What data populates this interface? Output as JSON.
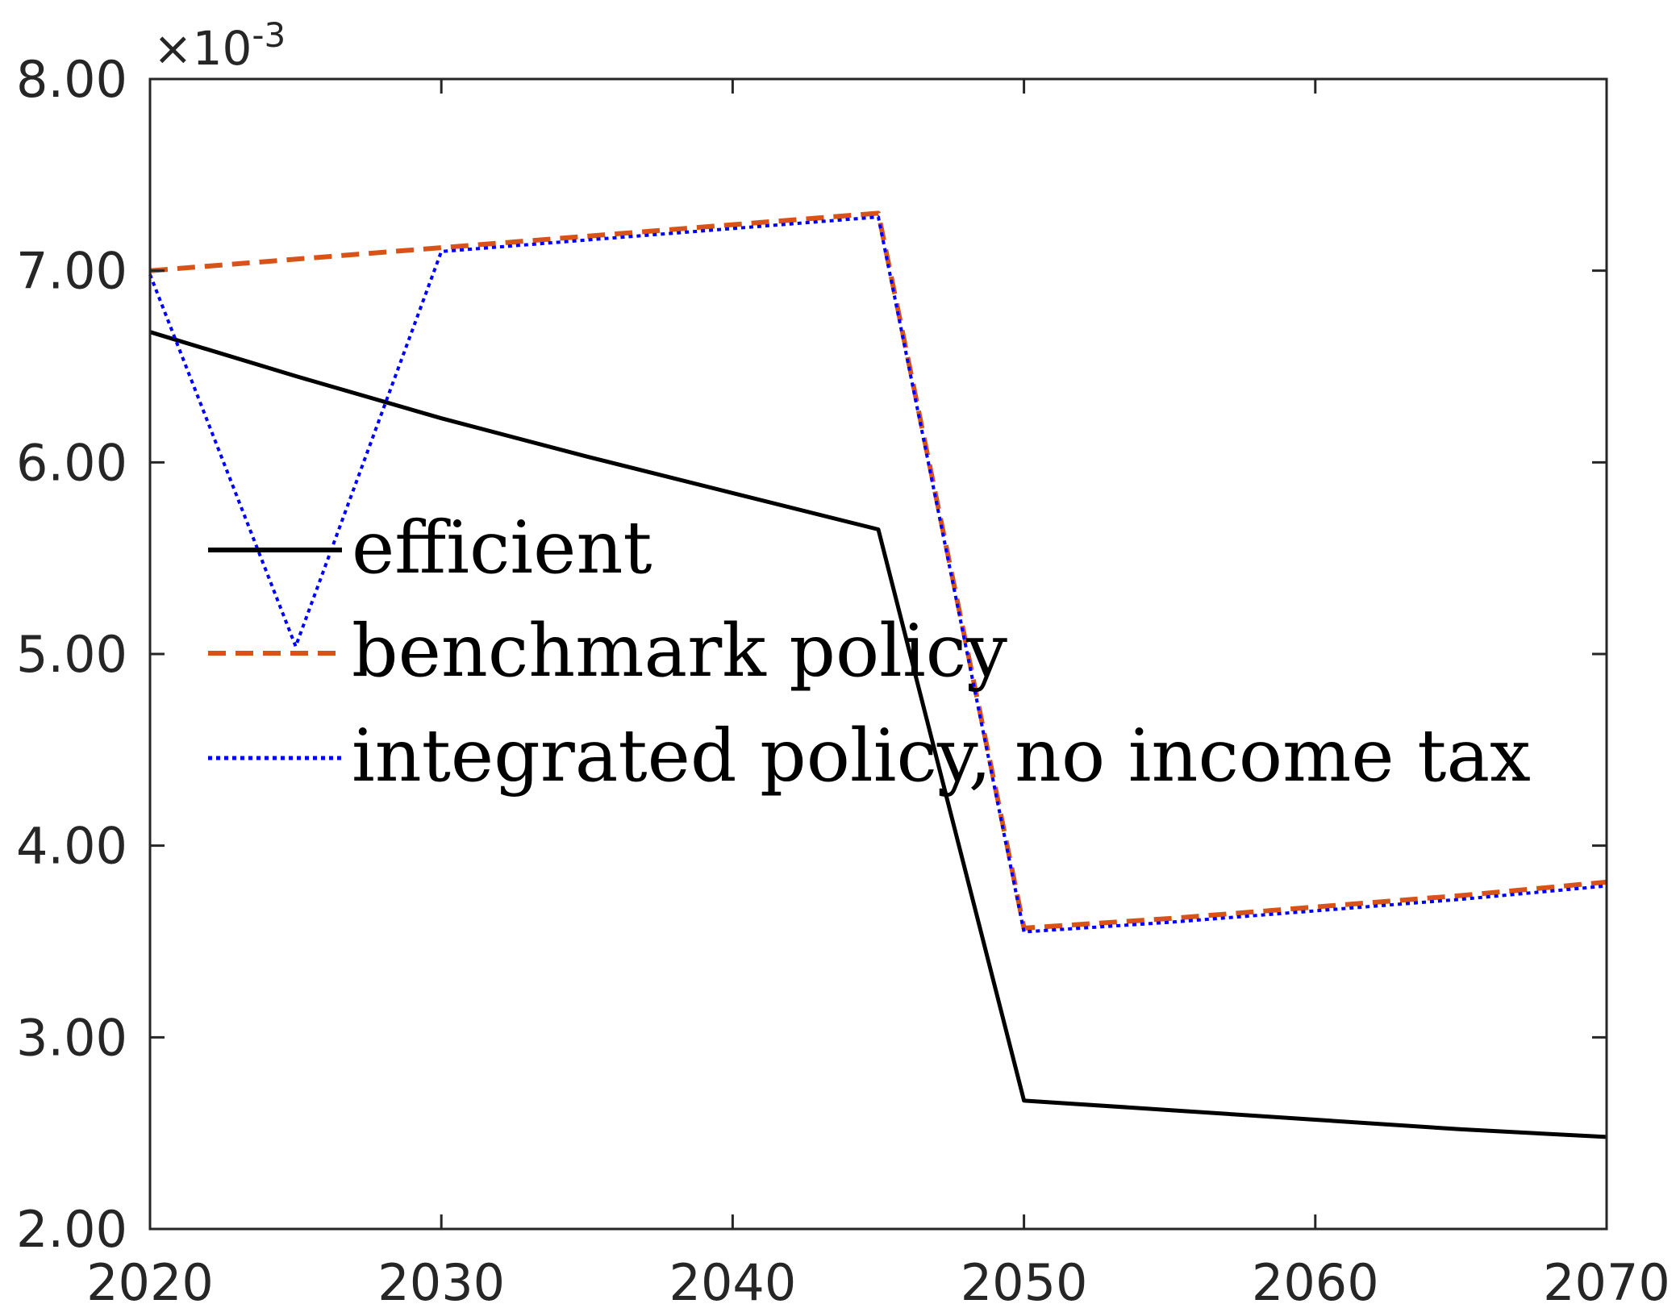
{
  "chart_data": {
    "type": "line",
    "title": "",
    "xlabel": "",
    "ylabel": "",
    "xlim": [
      2020,
      2070
    ],
    "ylim": [
      2.0,
      8.0
    ],
    "x_ticks": [
      "2020",
      "2030",
      "2040",
      "2050",
      "2060",
      "2070"
    ],
    "y_ticks": [
      "2.00",
      "3.00",
      "4.00",
      "5.00",
      "6.00",
      "7.00",
      "8.00"
    ],
    "y_exponent_base": "×10",
    "y_exponent_power": "-3",
    "grid": false,
    "legend_position": "center-left",
    "series": [
      {
        "name": "efficient",
        "color": "#000000",
        "style": "solid",
        "x": [
          2020,
          2025,
          2030,
          2035,
          2040,
          2045,
          2050,
          2055,
          2060,
          2065,
          2070
        ],
        "y": [
          6.68,
          6.45,
          6.23,
          6.03,
          5.84,
          5.65,
          2.67,
          2.62,
          2.57,
          2.52,
          2.48
        ]
      },
      {
        "name": "benchmark policy",
        "color": "#D95319",
        "style": "dashed",
        "x": [
          2020,
          2025,
          2030,
          2035,
          2040,
          2045,
          2050,
          2055,
          2060,
          2065,
          2070
        ],
        "y": [
          7.0,
          7.06,
          7.12,
          7.18,
          7.24,
          7.3,
          3.57,
          3.62,
          3.68,
          3.74,
          3.81
        ]
      },
      {
        "name": "integrated policy, no income tax",
        "color": "#0000FF",
        "style": "dotted",
        "x": [
          2020,
          2025,
          2030,
          2035,
          2040,
          2045,
          2050,
          2055,
          2060,
          2065,
          2070
        ],
        "y": [
          6.98,
          5.04,
          7.1,
          7.16,
          7.22,
          7.28,
          3.55,
          3.6,
          3.66,
          3.72,
          3.79
        ]
      }
    ]
  }
}
